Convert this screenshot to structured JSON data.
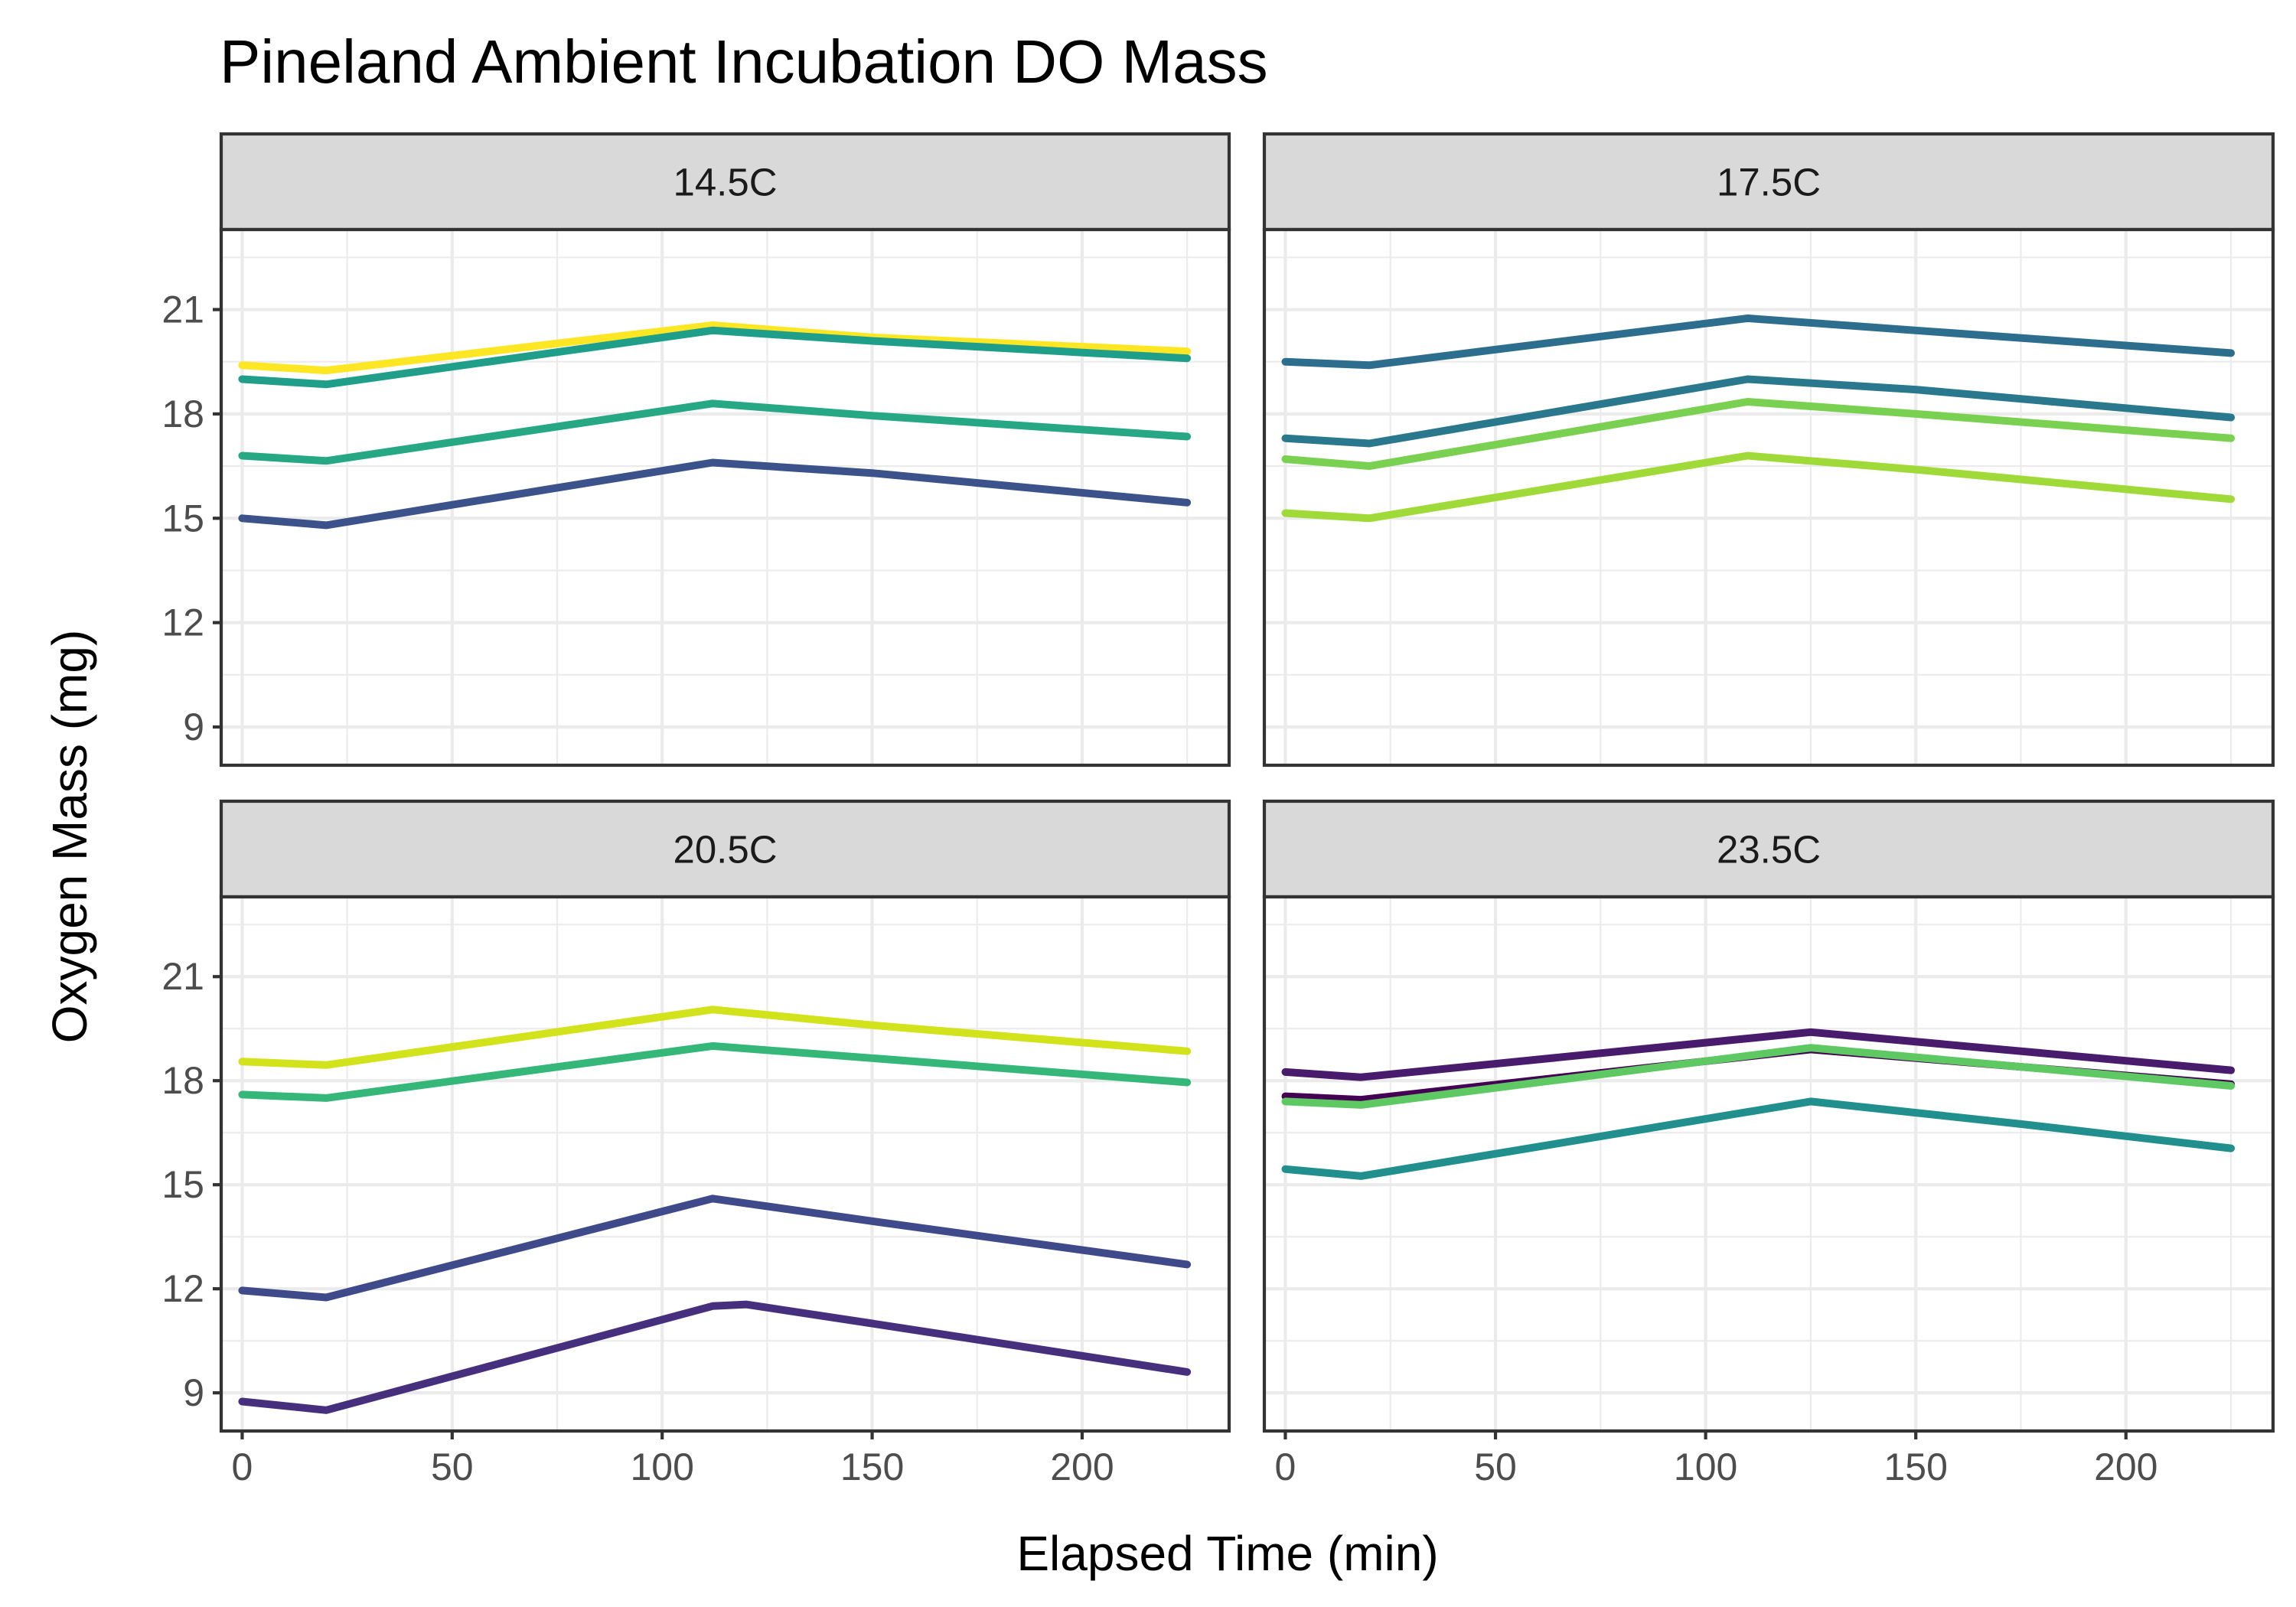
{
  "chart_data": {
    "type": "line",
    "title": "Pineland Ambient Incubation DO Mass",
    "xlabel": "Elapsed Time (min)",
    "ylabel": "Oxygen Mass (mg)",
    "xlim": [
      -5,
      235
    ],
    "ylim": [
      7.9,
      23.3
    ],
    "x_ticks": [
      0,
      50,
      100,
      150,
      200
    ],
    "y_ticks": [
      9,
      12,
      15,
      18,
      21
    ],
    "grid": true,
    "legend": "none",
    "panels": [
      {
        "strip": "14.5C",
        "series": [
          {
            "color": "#fde725",
            "x": [
              0,
              20,
              112,
              150,
              225
            ],
            "y": [
              19.4,
              19.25,
              20.55,
              20.2,
              19.8
            ]
          },
          {
            "color": "#1f9e89",
            "x": [
              0,
              20,
              112,
              150,
              225
            ],
            "y": [
              19.0,
              18.85,
              20.4,
              20.1,
              19.6
            ]
          },
          {
            "color": "#26a884",
            "x": [
              0,
              20,
              112,
              150,
              225
            ],
            "y": [
              16.8,
              16.65,
              18.3,
              17.95,
              17.35
            ]
          },
          {
            "color": "#3b528b",
            "x": [
              0,
              20,
              112,
              150,
              225
            ],
            "y": [
              15.0,
              14.8,
              16.6,
              16.3,
              15.45
            ]
          }
        ]
      },
      {
        "strip": "17.5C",
        "series": [
          {
            "color": "#2d6e8e",
            "x": [
              0,
              20,
              110,
              150,
              225
            ],
            "y": [
              19.5,
              19.4,
              20.75,
              20.4,
              19.75
            ]
          },
          {
            "color": "#2a788e",
            "x": [
              0,
              20,
              110,
              150,
              225
            ],
            "y": [
              17.3,
              17.15,
              19.0,
              18.7,
              17.9
            ]
          },
          {
            "color": "#7ad151",
            "x": [
              0,
              20,
              110,
              150,
              225
            ],
            "y": [
              16.7,
              16.5,
              18.35,
              18.0,
              17.3
            ]
          },
          {
            "color": "#a0da39",
            "x": [
              0,
              20,
              110,
              150,
              225
            ],
            "y": [
              15.15,
              15.0,
              16.8,
              16.4,
              15.55
            ]
          }
        ]
      },
      {
        "strip": "20.5C",
        "series": [
          {
            "color": "#d2e21b",
            "x": [
              0,
              20,
              112,
              150,
              225
            ],
            "y": [
              18.55,
              18.45,
              20.05,
              19.6,
              18.85
            ]
          },
          {
            "color": "#35b779",
            "x": [
              0,
              20,
              112,
              150,
              225
            ],
            "y": [
              17.6,
              17.5,
              19.0,
              18.65,
              17.95
            ]
          },
          {
            "color": "#3e4a89",
            "x": [
              0,
              20,
              112,
              150,
              225
            ],
            "y": [
              11.95,
              11.75,
              14.6,
              13.95,
              12.7
            ]
          },
          {
            "color": "#46307e",
            "x": [
              0,
              20,
              112,
              120,
              150,
              225
            ],
            "y": [
              8.75,
              8.5,
              11.5,
              11.55,
              11.0,
              9.6
            ]
          }
        ]
      },
      {
        "strip": "23.5C",
        "series": [
          {
            "color": "#440154",
            "x": [
              0,
              18,
              125,
              175,
              225
            ],
            "y": [
              17.55,
              17.45,
              18.9,
              18.4,
              17.9
            ]
          },
          {
            "color": "#481b6d",
            "x": [
              0,
              18,
              125,
              175,
              225
            ],
            "y": [
              18.25,
              18.1,
              19.4,
              18.85,
              18.3
            ]
          },
          {
            "color": "#5ec962",
            "x": [
              0,
              18,
              125,
              175,
              225
            ],
            "y": [
              17.4,
              17.3,
              18.95,
              18.4,
              17.85
            ]
          },
          {
            "color": "#218f8d",
            "x": [
              0,
              18,
              125,
              175,
              225
            ],
            "y": [
              15.45,
              15.25,
              17.4,
              16.75,
              16.05
            ]
          }
        ]
      }
    ]
  }
}
